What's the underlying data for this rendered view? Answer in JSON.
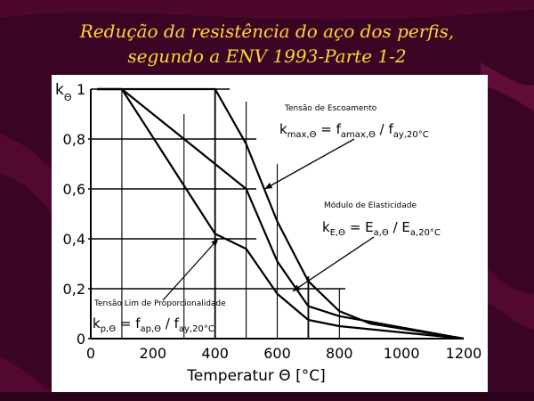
{
  "slide": {
    "title_line1": "Redução da resistência do aço dos perfis,",
    "title_line2": "segundo a ENV 1993-Parte 1-2",
    "background_color": "#3a0424",
    "title_color": "#ffd633"
  },
  "chart_data": {
    "type": "line",
    "title": "",
    "xlabel": "Temperatur Θ [°C]",
    "ylabel": "kΘ",
    "xlim": [
      0,
      1200
    ],
    "ylim": [
      0,
      1
    ],
    "x_ticks": [
      "0",
      "200",
      "400",
      "600",
      "800",
      "1000",
      "1200"
    ],
    "y_ticks": [
      "0",
      "0,2",
      "0,4",
      "0,6",
      "0,8",
      "1"
    ],
    "grid": "partial",
    "series": [
      {
        "id": "kmax",
        "x": [
          20,
          100,
          200,
          300,
          400,
          500,
          600,
          700,
          800,
          900,
          1000,
          1100,
          1200
        ],
        "y": [
          1.0,
          1.0,
          1.0,
          1.0,
          1.0,
          0.78,
          0.47,
          0.23,
          0.11,
          0.06,
          0.04,
          0.02,
          0.0
        ]
      },
      {
        "id": "kE",
        "x": [
          20,
          100,
          200,
          300,
          400,
          500,
          600,
          700,
          800,
          900,
          1000,
          1100,
          1200
        ],
        "y": [
          1.0,
          1.0,
          0.9,
          0.8,
          0.7,
          0.6,
          0.31,
          0.13,
          0.09,
          0.0675,
          0.045,
          0.0225,
          0.0
        ]
      },
      {
        "id": "kp",
        "x": [
          20,
          100,
          200,
          300,
          400,
          500,
          600,
          700,
          800,
          900,
          1000,
          1100,
          1200
        ],
        "y": [
          1.0,
          1.0,
          0.807,
          0.613,
          0.42,
          0.36,
          0.18,
          0.075,
          0.05,
          0.0375,
          0.025,
          0.0125,
          0.0
        ]
      }
    ],
    "annotations": {
      "kmax_label": "Tensão de Escoamento",
      "kmax_formula": "kmax,Θ = famax,Θ / fay,20°C",
      "kmax_lhs": "k",
      "kmax_lhs_sub": "max,Θ",
      "kmax_eq": " = f",
      "kmax_rhs1_sub": "amax,Θ",
      "kmax_slash": " / f",
      "kmax_rhs2_sub": "ay,20°C",
      "kE_label": "Módulo de Elasticidade",
      "kE_formula": "kE,Θ = Ea,Θ / Ea,20°C",
      "kE_lhs": "k",
      "kE_lhs_sub": "E,Θ",
      "kE_eq": " = E",
      "kE_rhs1_sub": "a,Θ",
      "kE_slash": " / E",
      "kE_rhs2_sub": "a,20°C",
      "kp_label": "Tensão Lim de Proporcionalidade",
      "kp_formula": "kp,Θ = fap,Θ / fay,20°C",
      "kp_lhs": "k",
      "kp_lhs_sub": "p,Θ",
      "kp_eq": " = f",
      "kp_rhs1_sub": "ap,Θ",
      "kp_slash": " / f",
      "kp_rhs2_sub": "ay,20°C"
    }
  }
}
